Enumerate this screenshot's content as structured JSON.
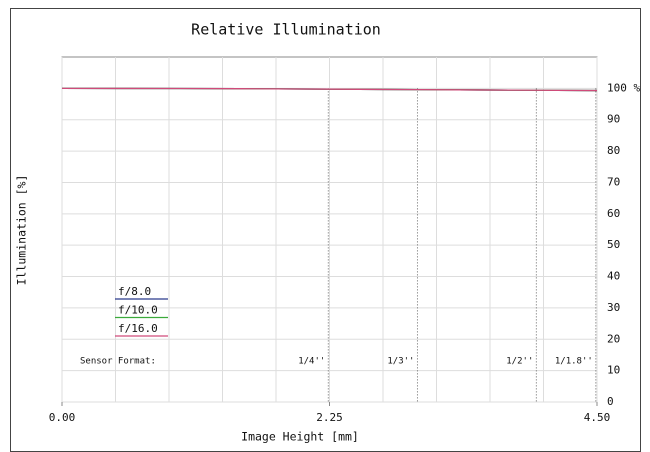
{
  "chart_data": {
    "type": "line",
    "title": "Relative Illumination",
    "x_label": "Image Height [mm]",
    "y_label": "Illumination [%]",
    "xlim": [
      0,
      4.5
    ],
    "xticks": [
      {
        "value": 0,
        "label": "0.00"
      },
      2.25,
      {
        "value": 4.5,
        "label": "4.50"
      }
    ],
    "x_grid": [
      0,
      0.45,
      0.9,
      1.35,
      1.8,
      2.25,
      2.7,
      3.15,
      3.6,
      4.05,
      4.5
    ],
    "ylim": [
      0,
      110
    ],
    "yticks": [
      0,
      10,
      20,
      30,
      40,
      50,
      60,
      70,
      80,
      90,
      {
        "value": 100,
        "label": "100 %"
      }
    ],
    "grid": true,
    "x": [
      0,
      0.5,
      1,
      1.5,
      2,
      2.5,
      3,
      3.5,
      4,
      4.5
    ],
    "series": [
      {
        "name": "f/8.0",
        "color": "#2b3a8c",
        "values": [
          100,
          99.98,
          99.95,
          99.9,
          99.8,
          99.7,
          99.6,
          99.5,
          99.4,
          99.3
        ]
      },
      {
        "name": "f/10.0",
        "color": "#3aaa3a",
        "values": [
          100,
          99.98,
          99.95,
          99.9,
          99.8,
          99.7,
          99.6,
          99.5,
          99.4,
          99.3
        ]
      },
      {
        "name": "f/16.0",
        "color": "#d04a7a",
        "values": [
          100,
          99.98,
          99.95,
          99.9,
          99.8,
          99.7,
          99.6,
          99.5,
          99.4,
          99.3
        ]
      }
    ],
    "sensor_format_label": "Sensor Format:",
    "sensor_formats": [
      {
        "label": "1/4''",
        "x": 2.24
      },
      {
        "label": "1/3''",
        "x": 2.99
      },
      {
        "label": "1/2''",
        "x": 3.99
      },
      {
        "label": "1/1.8''",
        "x": 4.49
      }
    ]
  }
}
